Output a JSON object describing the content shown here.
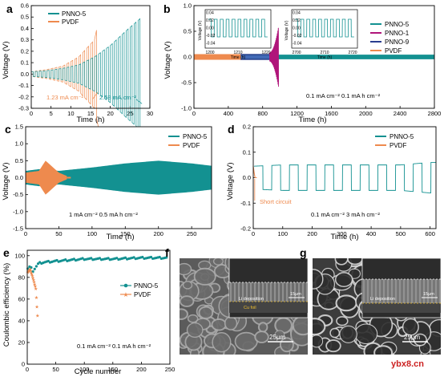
{
  "colors": {
    "teal": "#139191",
    "orange": "#ee8a4e",
    "navy": "#2a3d8f",
    "magenta": "#b0157a",
    "blue": "#4a72c0"
  },
  "panels": {
    "a": {
      "label": "a",
      "xlabel": "Time (h)",
      "ylabel": "Voltage (V)",
      "xticks": [
        "0",
        "5",
        "10",
        "15",
        "20",
        "25",
        "30"
      ],
      "yticks": [
        "-0.3",
        "-0.2",
        "-0.1",
        "0.0",
        "0.1",
        "0.2",
        "0.3",
        "0.4",
        "0.5",
        "0.6"
      ],
      "legend": [
        "PNNO-5",
        "PVDF"
      ],
      "annotations": [
        "1.23 mA cm⁻²",
        "2.58 mA cm⁻²"
      ]
    },
    "b": {
      "label": "b",
      "xlabel": "Time (h)",
      "ylabel": "Voltage (V)",
      "xticks": [
        "0",
        "400",
        "800",
        "1200",
        "1600",
        "2000",
        "2400",
        "2800"
      ],
      "yticks": [
        "-1.0",
        "-0.5",
        "0.0",
        "0.5",
        "1.0"
      ],
      "legend": [
        "PNNO-5",
        "PNNO-1",
        "PNNO-9",
        "PVDF"
      ],
      "note": "0.1 mA cm⁻²  0.1 mA h cm⁻²",
      "inset1": {
        "ylabel": "Voltage (V)",
        "xlabel": "Time (h)",
        "yticks": [
          "0.04",
          "0.02",
          "0.00",
          "-0.02",
          "-0.04"
        ],
        "xticks": [
          "1200",
          "1210",
          "1220"
        ]
      },
      "inset2": {
        "ylabel": "Voltage (V)",
        "xlabel": "Time (h)",
        "yticks": [
          "0.04",
          "0.02",
          "0.00",
          "-0.02",
          "-0.04"
        ],
        "xticks": [
          "2700",
          "2710",
          "2720"
        ]
      }
    },
    "c": {
      "label": "c",
      "xlabel": "Time (h)",
      "ylabel": "Voltage (V)",
      "xticks": [
        "0",
        "50",
        "100",
        "150",
        "200",
        "250"
      ],
      "yticks": [
        "-1.5",
        "-1.0",
        "-0.5",
        "0.0",
        "0.5",
        "1.0",
        "1.5"
      ],
      "legend": [
        "PNNO-5",
        "PVDF"
      ],
      "note": "1 mA cm⁻²  0.5 mA h cm⁻²"
    },
    "d": {
      "label": "d",
      "xlabel": "Time (h)",
      "ylabel": "Voltage (V)",
      "xticks": [
        "0",
        "100",
        "200",
        "300",
        "400",
        "500",
        "600"
      ],
      "yticks": [
        "-0.2",
        "-0.1",
        "0.0",
        "0.1",
        "0.2"
      ],
      "legend": [
        "PNNO-5",
        "PVDF"
      ],
      "short": "Short circuit",
      "note": "0.1 mA cm⁻²  3 mA h cm⁻²"
    },
    "e": {
      "label": "e",
      "xlabel": "Cycle number",
      "ylabel": "Coulombic efficiency (%)",
      "xticks": [
        "0",
        "50",
        "100",
        "150",
        "200",
        "250"
      ],
      "yticks": [
        "0",
        "20",
        "40",
        "60",
        "80",
        "100"
      ],
      "legend": [
        "PNNO-5",
        "PVDF"
      ],
      "note": "0.1 mA cm⁻²  0.1 mA h cm⁻²"
    },
    "f": {
      "label": "f",
      "scale": "25μm",
      "inset_scale": "15μm",
      "li": "Li deposition",
      "cu": "Cu foil"
    },
    "g": {
      "label": "g",
      "scale": "25μm",
      "inset_scale": "15μm",
      "li": "Li deposition"
    }
  },
  "watermark": "ybx8.cn",
  "chart_data": [
    {
      "panel": "a",
      "type": "line",
      "xlim": [
        0,
        30
      ],
      "ylim": [
        -0.3,
        0.6
      ],
      "series": [
        {
          "name": "PNNO-5",
          "x": [
            0,
            4,
            8,
            12,
            16,
            20,
            24,
            28
          ],
          "y": [
            0.02,
            0.03,
            0.05,
            0.08,
            0.15,
            0.25,
            0.38,
            0.5
          ]
        },
        {
          "name": "PVDF",
          "x": [
            0,
            4,
            8,
            12,
            16,
            17
          ],
          "y": [
            0.02,
            0.04,
            0.07,
            0.15,
            0.3,
            0.47
          ]
        }
      ]
    },
    {
      "panel": "b",
      "type": "line",
      "xlim": [
        0,
        2800
      ],
      "ylim": [
        -1.0,
        1.0
      ],
      "series": [
        {
          "name": "PNNO-5",
          "x": [
            0,
            2800
          ],
          "y": [
            0.04,
            0.04
          ]
        },
        {
          "name": "PNNO-9",
          "x": [
            550,
            880
          ],
          "y": [
            0.05,
            0.06
          ]
        },
        {
          "name": "PNNO-1",
          "x": [
            880,
            980
          ],
          "y": [
            0.1,
            0.55
          ]
        },
        {
          "name": "PVDF",
          "x": [
            0,
            540
          ],
          "y": [
            0.05,
            0.05
          ]
        }
      ]
    },
    {
      "panel": "c",
      "type": "line",
      "xlim": [
        0,
        280
      ],
      "ylim": [
        -1.5,
        1.5
      ],
      "series": [
        {
          "name": "PNNO-5",
          "x": [
            0,
            20,
            50,
            100,
            150,
            200,
            250,
            280
          ],
          "y": [
            0.2,
            0.25,
            0.2,
            0.3,
            0.42,
            0.5,
            0.42,
            0.35
          ]
        },
        {
          "name": "PVDF",
          "x": [
            0,
            20,
            30,
            50,
            62
          ],
          "y": [
            0.15,
            0.2,
            0.5,
            0.15,
            0.05
          ]
        }
      ]
    },
    {
      "panel": "d",
      "type": "line",
      "xlim": [
        0,
        620
      ],
      "ylim": [
        -0.2,
        0.2
      ],
      "series": [
        {
          "name": "PNNO-5",
          "x": [
            0,
            100,
            200,
            300,
            400,
            500,
            600
          ],
          "y": [
            0.045,
            0.05,
            0.05,
            0.05,
            0.05,
            0.05,
            0.06
          ]
        },
        {
          "name": "PVDF",
          "x": [
            0,
            10
          ],
          "y": [
            0.03,
            0.0
          ]
        }
      ]
    },
    {
      "panel": "e",
      "type": "scatter",
      "xlim": [
        0,
        250
      ],
      "ylim": [
        0,
        105
      ],
      "series": [
        {
          "name": "PNNO-5",
          "x": [
            1,
            5,
            10,
            20,
            30,
            50,
            100,
            150,
            200,
            250
          ],
          "y": [
            88,
            90,
            86,
            93,
            94,
            95,
            97,
            97,
            98,
            98
          ]
        },
        {
          "name": "PVDF",
          "x": [
            1,
            5,
            10,
            15,
            18
          ],
          "y": [
            85,
            88,
            80,
            70,
            45
          ]
        }
      ]
    }
  ]
}
